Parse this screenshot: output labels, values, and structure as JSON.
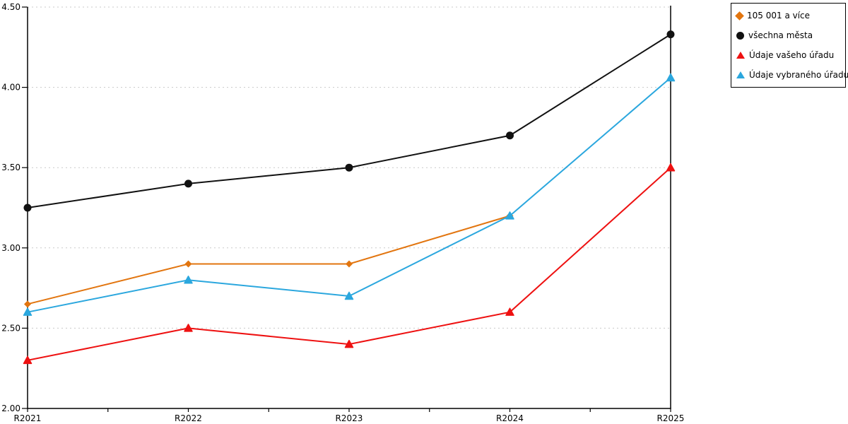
{
  "chart_data": {
    "type": "line",
    "title": "",
    "xlabel": "",
    "ylabel": "",
    "x": [
      "R2021",
      "R2022",
      "R2023",
      "R2024",
      "R2025"
    ],
    "series": [
      {
        "name": "105 001 a více",
        "marker": "diamond",
        "color": "#E2750F",
        "values": [
          2.65,
          2.9,
          2.9,
          3.2,
          null
        ]
      },
      {
        "name": "všechna města",
        "marker": "circle",
        "color": "#111111",
        "values": [
          3.25,
          3.4,
          3.5,
          3.7,
          4.33
        ]
      },
      {
        "name": "Údaje vašeho úřadu",
        "marker": "triangle",
        "color": "#EE1111",
        "values": [
          2.3,
          2.5,
          2.4,
          2.6,
          3.5
        ]
      },
      {
        "name": "Údaje vybraného úřadu",
        "marker": "triangle",
        "color": "#2BA7DE",
        "values": [
          2.6,
          2.8,
          2.7,
          3.2,
          4.06
        ]
      }
    ],
    "ylim": [
      2.0,
      4.5
    ],
    "ytick_step": 0.5,
    "ytick_labels": [
      "2.00",
      "2.50",
      "3.00",
      "3.50",
      "4.00",
      "4.50"
    ],
    "grid": "horizontal-dashed",
    "gridline_color": "#c9c9c9",
    "axis_color": "#000000",
    "legend_position": "top-right"
  }
}
